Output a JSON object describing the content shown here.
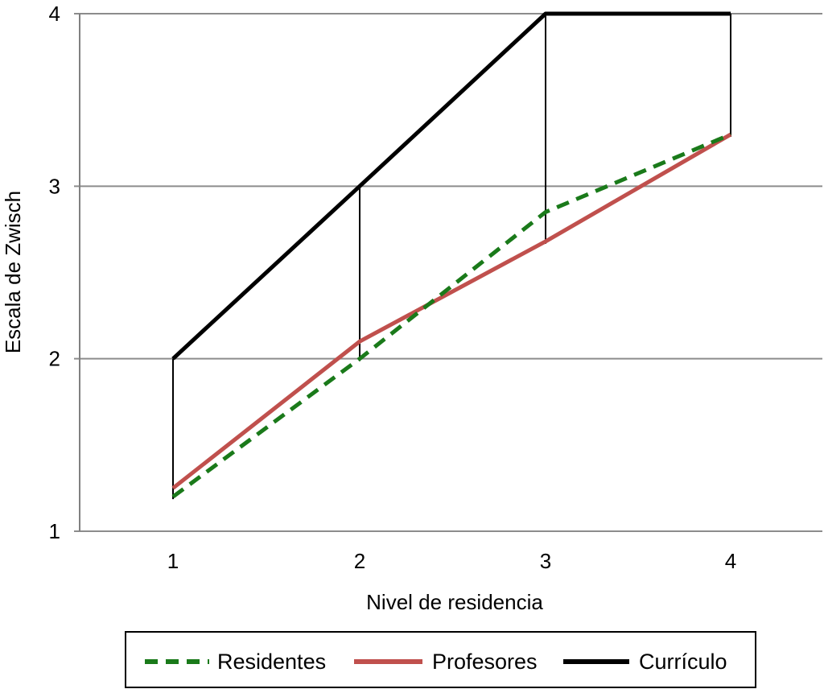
{
  "chart_data": {
    "type": "line",
    "title": "",
    "xlabel": "Nivel de residencia",
    "ylabel": "Escala de Zwisch",
    "x": [
      1,
      2,
      3,
      4
    ],
    "x_tick_labels": [
      "1",
      "2",
      "3",
      "4"
    ],
    "y_tick_labels": [
      "1",
      "2",
      "3",
      "4"
    ],
    "ylim": [
      1,
      4
    ],
    "grid": "horizontal",
    "legend_position": "bottom",
    "series": [
      {
        "name": "Residentes",
        "values": [
          1.2,
          2.0,
          2.85,
          3.3
        ],
        "color": "#1a7a1a",
        "style": "dashed"
      },
      {
        "name": "Profesores",
        "values": [
          1.25,
          2.1,
          2.68,
          3.3
        ],
        "color": "#c0504d",
        "style": "solid"
      },
      {
        "name": "Currículo",
        "values": [
          2.0,
          3.0,
          4.0,
          4.0
        ],
        "color": "#000000",
        "style": "solid"
      }
    ]
  }
}
